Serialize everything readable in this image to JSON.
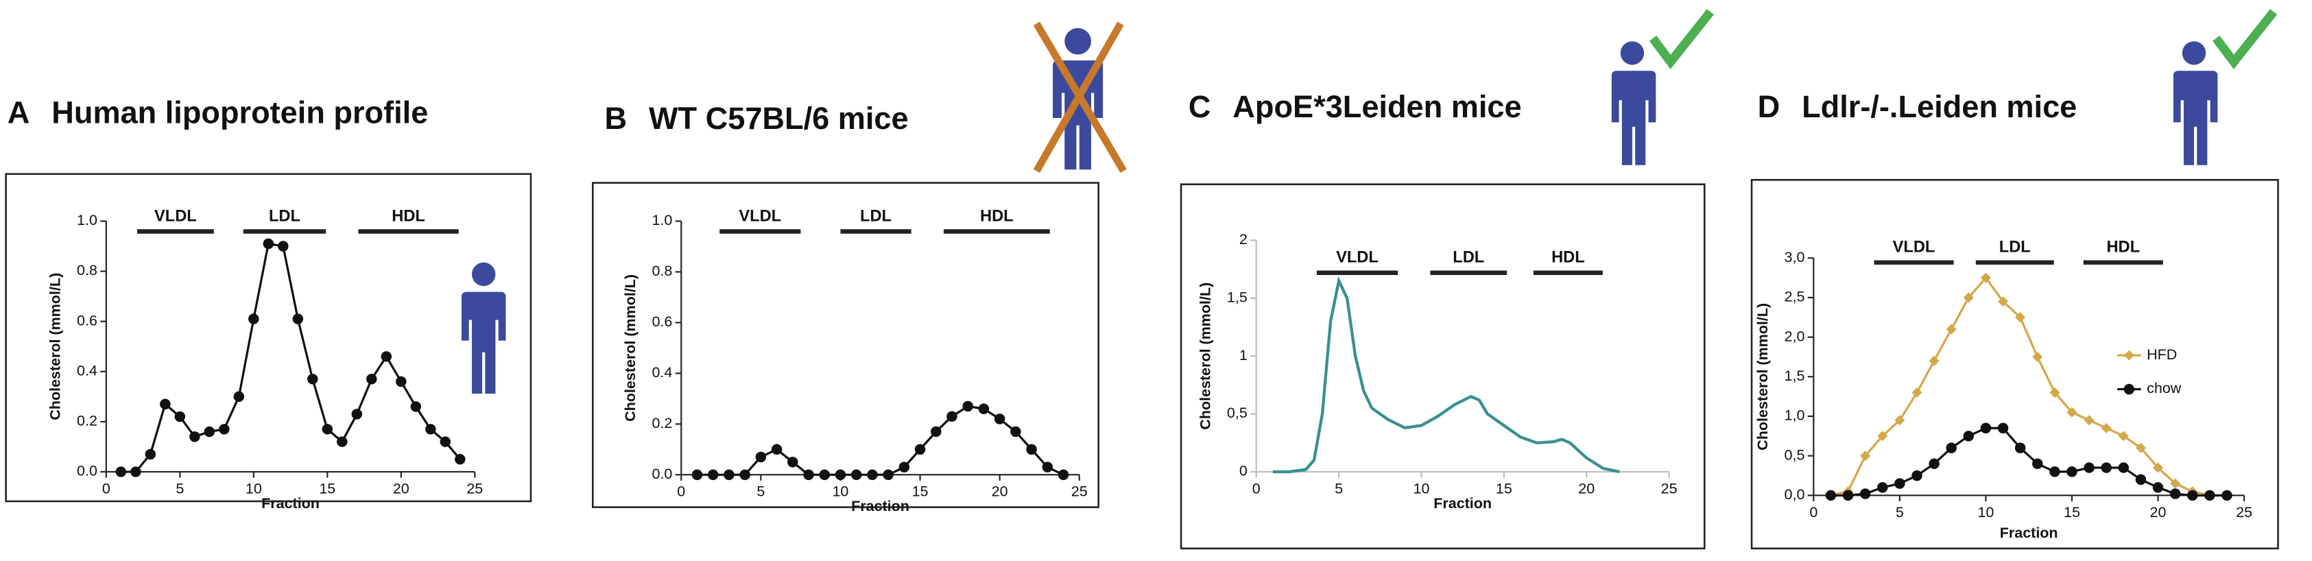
{
  "chart_data": [
    {
      "type": "line",
      "panel_label": "A",
      "title": "Human lipoprotein profile",
      "group_labels": [
        "VLDL",
        "LDL",
        "HDL"
      ],
      "xlabel": "Fraction",
      "ylabel": "Cholesterol (mmol/L)",
      "marker": "circle",
      "color": "#111111",
      "x": [
        1,
        2,
        3,
        4,
        5,
        6,
        7,
        8,
        9,
        10,
        11,
        12,
        13,
        14,
        15,
        16,
        17,
        18,
        19,
        20,
        21,
        22,
        23,
        24
      ],
      "values": [
        0,
        0,
        0.07,
        0.27,
        0.22,
        0.14,
        0.16,
        0.17,
        0.3,
        0.61,
        0.91,
        0.9,
        0.61,
        0.37,
        0.17,
        0.12,
        0.23,
        0.37,
        0.46,
        0.36,
        0.26,
        0.17,
        0.12,
        0.05
      ],
      "xlim": [
        0,
        25
      ],
      "xticks": [
        0,
        5,
        10,
        15,
        20,
        25
      ],
      "ylim": [
        0,
        1
      ],
      "yticks": [
        {
          "value": 0,
          "label": "0.0"
        },
        0.2,
        0.4,
        0.6,
        0.8,
        {
          "value": 1,
          "label": "1.0"
        }
      ]
    },
    {
      "type": "line",
      "panel_label": "B",
      "title": "WT C57BL/6 mice",
      "group_labels": [
        "VLDL",
        "LDL",
        "HDL"
      ],
      "xlabel": "Fraction",
      "ylabel": "Cholesterol (mmol/L)",
      "marker": "circle",
      "color": "#111111",
      "x": [
        1,
        2,
        3,
        4,
        5,
        6,
        7,
        8,
        9,
        10,
        11,
        12,
        13,
        14,
        15,
        16,
        17,
        18,
        19,
        20,
        21,
        22,
        23,
        24
      ],
      "values": [
        0,
        0,
        0,
        0,
        0.07,
        0.1,
        0.05,
        0,
        0,
        0,
        0,
        0,
        0,
        0.03,
        0.1,
        0.17,
        0.23,
        0.27,
        0.26,
        0.22,
        0.17,
        0.1,
        0.03,
        0
      ],
      "xlim": [
        0,
        25
      ],
      "xticks": [
        0,
        5,
        10,
        15,
        20,
        25
      ],
      "ylim": [
        0,
        1
      ],
      "yticks": [
        {
          "value": 0,
          "label": "0.0"
        },
        0.2,
        0.4,
        0.6,
        0.8,
        {
          "value": 1,
          "label": "1.0"
        }
      ]
    },
    {
      "type": "line",
      "panel_label": "C",
      "title": "ApoE*3Leiden mice",
      "group_labels": [
        "VLDL",
        "LDL",
        "HDL"
      ],
      "xlabel": "Fraction",
      "ylabel": "Cholesterol (mmol/L)",
      "marker": "none",
      "color": "#3a8f8f",
      "x": [
        1,
        2,
        3,
        3.5,
        4,
        4.5,
        5,
        5.5,
        6,
        6.5,
        7,
        8,
        9,
        10,
        11,
        12,
        13,
        13.5,
        14,
        15,
        16,
        17,
        18,
        18.5,
        19,
        20,
        21,
        22
      ],
      "values": [
        0,
        0,
        0.02,
        0.1,
        0.5,
        1.3,
        1.65,
        1.5,
        1.0,
        0.7,
        0.55,
        0.45,
        0.38,
        0.4,
        0.48,
        0.58,
        0.65,
        0.62,
        0.5,
        0.4,
        0.3,
        0.25,
        0.26,
        0.28,
        0.25,
        0.12,
        0.03,
        0
      ],
      "xlim": [
        0,
        25
      ],
      "xticks": [
        0,
        5,
        10,
        15,
        20,
        25
      ],
      "ylim": [
        0,
        2
      ],
      "yticks": [
        0,
        {
          "value": 0.5,
          "label": "0,5"
        },
        1,
        {
          "value": 1.5,
          "label": "1,5"
        },
        2
      ]
    },
    {
      "type": "line",
      "panel_label": "D",
      "title": "Ldlr-/-.Leiden mice",
      "group_labels": [
        "VLDL",
        "LDL",
        "HDL"
      ],
      "xlabel": "Fraction",
      "ylabel": "Cholesterol (mmol/L)",
      "x": [
        1,
        2,
        3,
        4,
        5,
        6,
        7,
        8,
        9,
        10,
        11,
        12,
        13,
        14,
        15,
        16,
        17,
        18,
        19,
        20,
        21,
        22,
        23,
        24
      ],
      "series": [
        {
          "name": "HFD",
          "color": "#d4a84a",
          "marker": "diamond",
          "values": [
            0,
            0.05,
            0.5,
            0.75,
            0.95,
            1.3,
            1.7,
            2.1,
            2.5,
            2.75,
            2.45,
            2.25,
            1.75,
            1.3,
            1.05,
            0.95,
            0.85,
            0.75,
            0.6,
            0.35,
            0.15,
            0.05,
            0,
            0
          ]
        },
        {
          "name": "chow",
          "color": "#111111",
          "marker": "circle",
          "values": [
            0,
            0,
            0.02,
            0.1,
            0.15,
            0.25,
            0.4,
            0.6,
            0.75,
            0.85,
            0.85,
            0.6,
            0.4,
            0.3,
            0.3,
            0.35,
            0.35,
            0.35,
            0.2,
            0.1,
            0.02,
            0,
            0,
            0
          ]
        }
      ],
      "xlim": [
        0,
        25
      ],
      "xticks": [
        0,
        5,
        10,
        15,
        20,
        25
      ],
      "ylim": [
        0,
        3
      ],
      "yticks": [
        {
          "value": 0,
          "label": "0,0"
        },
        {
          "value": 0.5,
          "label": "0,5"
        },
        {
          "value": 1,
          "label": "1,0"
        },
        {
          "value": 1.5,
          "label": "1,5"
        },
        {
          "value": 2,
          "label": "2,0"
        },
        {
          "value": 2.5,
          "label": "2,5"
        },
        {
          "value": 3,
          "label": "3,0"
        }
      ]
    }
  ]
}
